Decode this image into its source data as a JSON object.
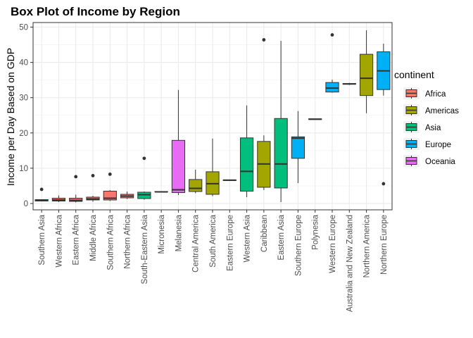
{
  "chart_data": {
    "type": "box",
    "title": "Box Plot of Income by Region",
    "xlabel": "",
    "ylabel": "Income per Day Based on GDP",
    "ylim": [
      -1.8,
      51.3
    ],
    "yticks": [
      0,
      10,
      20,
      30,
      40,
      50
    ],
    "grid": true,
    "legend": {
      "title": "continent",
      "position": "right",
      "items": [
        {
          "name": "Africa",
          "color": "#F8766D"
        },
        {
          "name": "Americas",
          "color": "#A3A500"
        },
        {
          "name": "Asia",
          "color": "#00BF7D"
        },
        {
          "name": "Europe",
          "color": "#00B0F6"
        },
        {
          "name": "Oceania",
          "color": "#E76BF3"
        }
      ]
    },
    "categories": [
      "Southern Asia",
      "Western Africa",
      "Eastern Africa",
      "Middle Africa",
      "Southern Africa",
      "Northern Africa",
      "South-Eastern Asia",
      "Micronesia",
      "Melanesia",
      "Central America",
      "South America",
      "Eastern Europe",
      "Western Asia",
      "Caribbean",
      "Eastern Asia",
      "Southern Europe",
      "Polynesia",
      "Western Europe",
      "Australia and New Zealand",
      "Northern America",
      "Northern Europe"
    ],
    "boxes": [
      {
        "region": "Southern Asia",
        "continent": "Asia",
        "min": 0.6,
        "q1": 0.7,
        "median": 0.9,
        "q3": 1.1,
        "max": 1.2,
        "outliers": [
          4.0
        ]
      },
      {
        "region": "Western Africa",
        "continent": "Africa",
        "min": 0.4,
        "q1": 0.7,
        "median": 1.0,
        "q3": 1.5,
        "max": 2.3,
        "outliers": []
      },
      {
        "region": "Eastern Africa",
        "continent": "Africa",
        "min": 0.3,
        "q1": 0.6,
        "median": 0.9,
        "q3": 1.5,
        "max": 2.5,
        "outliers": [
          7.6
        ]
      },
      {
        "region": "Middle Africa",
        "continent": "Africa",
        "min": 0.5,
        "q1": 1.0,
        "median": 1.3,
        "q3": 1.8,
        "max": 2.2,
        "outliers": [
          7.9
        ]
      },
      {
        "region": "Southern Africa",
        "continent": "Africa",
        "min": 0.7,
        "q1": 1.0,
        "median": 1.5,
        "q3": 3.5,
        "max": 3.8,
        "outliers": [
          8.3
        ]
      },
      {
        "region": "Northern Africa",
        "continent": "Africa",
        "min": 1.3,
        "q1": 1.6,
        "median": 2.1,
        "q3": 2.6,
        "max": 3.4,
        "outliers": []
      },
      {
        "region": "South-Eastern Asia",
        "continent": "Asia",
        "min": 1.1,
        "q1": 1.4,
        "median": 2.5,
        "q3": 3.2,
        "max": 3.4,
        "outliers": [
          12.8
        ]
      },
      {
        "region": "Micronesia",
        "continent": "Oceania",
        "min": 3.2,
        "q1": 3.3,
        "median": 3.3,
        "q3": 3.4,
        "max": 3.4,
        "outliers": []
      },
      {
        "region": "Melanesia",
        "continent": "Oceania",
        "min": 2.4,
        "q1": 3.1,
        "median": 3.9,
        "q3": 17.9,
        "max": 32.2,
        "outliers": []
      },
      {
        "region": "Central America",
        "continent": "Americas",
        "min": 2.9,
        "q1": 3.4,
        "median": 4.3,
        "q3": 6.8,
        "max": 9.6,
        "outliers": []
      },
      {
        "region": "South America",
        "continent": "Americas",
        "min": 2.1,
        "q1": 2.6,
        "median": 5.6,
        "q3": 9.0,
        "max": 18.4,
        "outliers": []
      },
      {
        "region": "Eastern Europe",
        "continent": "Europe",
        "min": 6.4,
        "q1": 6.5,
        "median": 6.6,
        "q3": 6.7,
        "max": 6.8,
        "outliers": []
      },
      {
        "region": "Western Asia",
        "continent": "Asia",
        "min": 1.8,
        "q1": 3.5,
        "median": 9.1,
        "q3": 18.6,
        "max": 27.8,
        "outliers": []
      },
      {
        "region": "Caribbean",
        "continent": "Americas",
        "min": 3.8,
        "q1": 4.6,
        "median": 11.2,
        "q3": 17.6,
        "max": 19.3,
        "outliers": [
          46.4
        ]
      },
      {
        "region": "Eastern Asia",
        "continent": "Asia",
        "min": 0.4,
        "q1": 4.4,
        "median": 11.2,
        "q3": 24.1,
        "max": 46.1,
        "outliers": []
      },
      {
        "region": "Southern Europe",
        "continent": "Europe",
        "min": 5.8,
        "q1": 12.8,
        "median": 18.5,
        "q3": 18.9,
        "max": 26.2,
        "outliers": []
      },
      {
        "region": "Polynesia",
        "continent": "Oceania",
        "min": 23.8,
        "q1": 23.8,
        "median": 23.9,
        "q3": 24.0,
        "max": 24.0,
        "outliers": []
      },
      {
        "region": "Western Europe",
        "continent": "Europe",
        "min": 31.4,
        "q1": 31.6,
        "median": 32.7,
        "q3": 34.3,
        "max": 35.1,
        "outliers": [
          47.8
        ]
      },
      {
        "region": "Australia and New Zealand",
        "continent": "Oceania",
        "min": 33.6,
        "q1": 33.8,
        "median": 33.9,
        "q3": 34.0,
        "max": 34.2,
        "outliers": []
      },
      {
        "region": "Northern America",
        "continent": "Americas",
        "min": 25.6,
        "q1": 30.6,
        "median": 35.5,
        "q3": 42.3,
        "max": 49.1,
        "outliers": []
      },
      {
        "region": "Northern Europe",
        "continent": "Europe",
        "min": 30.6,
        "q1": 32.3,
        "median": 37.6,
        "q3": 43.0,
        "max": 45.3,
        "outliers": [
          5.6
        ]
      }
    ]
  }
}
